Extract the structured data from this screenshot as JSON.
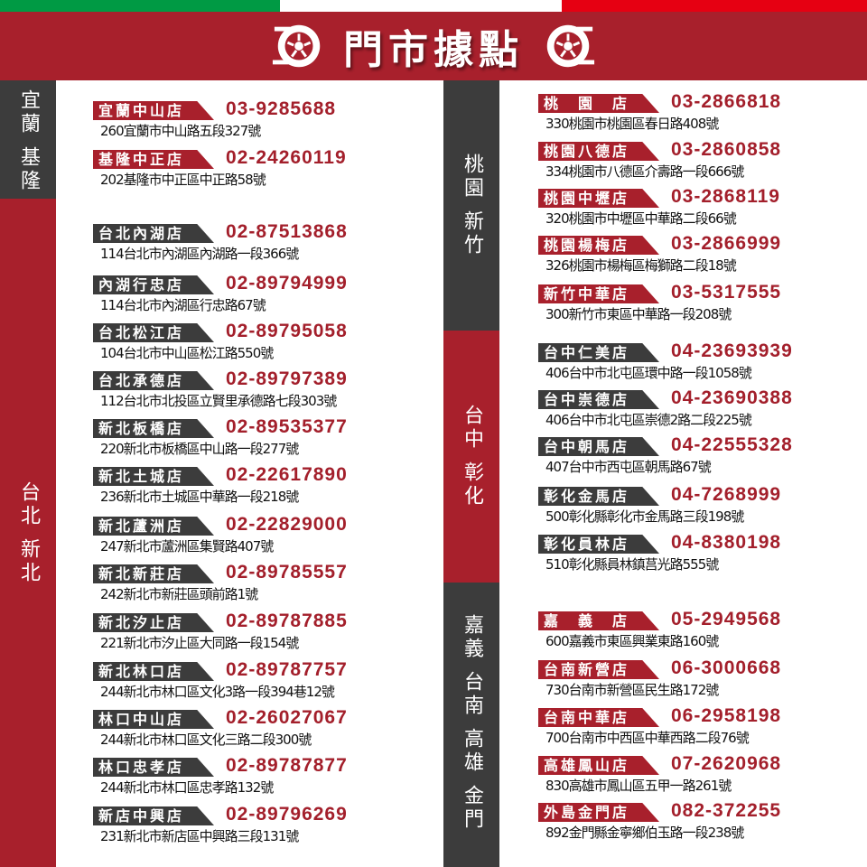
{
  "header": {
    "title": "門市據點",
    "icon": "tire-wheel-icon",
    "flag_colors": [
      "#009a44",
      "#ffffff",
      "#e60012"
    ],
    "brand_color": "#a8202c",
    "dark_color": "#3c3c3c"
  },
  "regions": {
    "yilan_keelung": "宜蘭 基隆",
    "taipei_newtaipei": "台北 新北",
    "taoyuan_hsinchu": "桃園 新竹",
    "taichung_changhua": "台中 彰化",
    "south": "嘉義 台南 高雄 金門"
  },
  "left_stores": [
    {
      "name": "宜蘭中山店",
      "phone": "03-9285688",
      "address": "260宜蘭市中山路五段327號",
      "style": "red"
    },
    {
      "name": "基隆中正店",
      "phone": "02-24260119",
      "address": "202基隆市中正區中正路58號",
      "style": "red"
    },
    {
      "name": "台北內湖店",
      "phone": "02-87513868",
      "address": "114台北市內湖區內湖路一段366號",
      "style": "dark"
    },
    {
      "name": "內湖行忠店",
      "phone": "02-89794999",
      "address": "114台北市內湖區行忠路67號",
      "style": "dark"
    },
    {
      "name": "台北松江店",
      "phone": "02-89795058",
      "address": "104台北市中山區松江路550號",
      "style": "dark"
    },
    {
      "name": "台北承德店",
      "phone": "02-89797389",
      "address": "112台北市北投區立賢里承德路七段303號",
      "style": "dark"
    },
    {
      "name": "新北板橋店",
      "phone": "02-89535377",
      "address": "220新北市板橋區中山路一段277號",
      "style": "dark"
    },
    {
      "name": "新北土城店",
      "phone": "02-22617890",
      "address": "236新北市土城區中華路一段218號",
      "style": "dark"
    },
    {
      "name": "新北蘆洲店",
      "phone": "02-22829000",
      "address": "247新北市蘆洲區集賢路407號",
      "style": "dark"
    },
    {
      "name": "新北新莊店",
      "phone": "02-89785557",
      "address": "242新北市新莊區頭前路1號",
      "style": "dark"
    },
    {
      "name": "新北汐止店",
      "phone": "02-89787885",
      "address": "221新北市汐止區大同路一段154號",
      "style": "dark"
    },
    {
      "name": "新北林口店",
      "phone": "02-89787757",
      "address": "244新北市林口區文化3路一段394巷12號",
      "style": "dark"
    },
    {
      "name": "林口中山店",
      "phone": "02-26027067",
      "address": "244新北市林口區文化三路二段300號",
      "style": "dark"
    },
    {
      "name": "林口忠孝店",
      "phone": "02-89787877",
      "address": "244新北市林口區忠孝路132號",
      "style": "dark"
    },
    {
      "name": "新店中興店",
      "phone": "02-89796269",
      "address": "231新北市新店區中興路三段131號",
      "style": "dark"
    }
  ],
  "right_stores": [
    {
      "name": "桃　園　店",
      "phone": "03-2866818",
      "address": "330桃園市桃園區春日路408號",
      "style": "red"
    },
    {
      "name": "桃園八德店",
      "phone": "03-2860858",
      "address": "334桃園市八德區介壽路一段666號",
      "style": "red"
    },
    {
      "name": "桃園中壢店",
      "phone": "03-2868119",
      "address": "320桃園市中壢區中華路二段66號",
      "style": "red"
    },
    {
      "name": "桃園楊梅店",
      "phone": "03-2866999",
      "address": "326桃園市楊梅區梅獅路二段18號",
      "style": "red"
    },
    {
      "name": "新竹中華店",
      "phone": "03-5317555",
      "address": "300新竹市東區中華路一段208號",
      "style": "red"
    },
    {
      "name": "台中仁美店",
      "phone": "04-23693939",
      "address": "406台中市北屯區環中路一段1058號",
      "style": "dark"
    },
    {
      "name": "台中崇德店",
      "phone": "04-23690388",
      "address": "406台中市北屯區崇德2路二段225號",
      "style": "dark"
    },
    {
      "name": "台中朝馬店",
      "phone": "04-22555328",
      "address": "407台中市西屯區朝馬路67號",
      "style": "dark"
    },
    {
      "name": "彰化金馬店",
      "phone": "04-7268999",
      "address": "500彰化縣彰化市金馬路三段198號",
      "style": "dark"
    },
    {
      "name": "彰化員林店",
      "phone": "04-8380198",
      "address": "510彰化縣員林鎮莒光路555號",
      "style": "dark"
    },
    {
      "name": "嘉　義　店",
      "phone": "05-2949568",
      "address": "600嘉義市東區興業東路160號",
      "style": "red"
    },
    {
      "name": "台南新營店",
      "phone": "06-3000668",
      "address": "730台南市新營區民生路172號",
      "style": "red"
    },
    {
      "name": "台南中華店",
      "phone": "06-2958198",
      "address": "700台南市中西區中華西路二段76號",
      "style": "red"
    },
    {
      "name": "高雄鳳山店",
      "phone": "07-2620968",
      "address": "830高雄市鳳山區五甲一路261號",
      "style": "red"
    },
    {
      "name": "外島金門店",
      "phone": "082-372255",
      "address": "892金門縣金寧鄉伯玉路一段238號",
      "style": "red"
    }
  ]
}
